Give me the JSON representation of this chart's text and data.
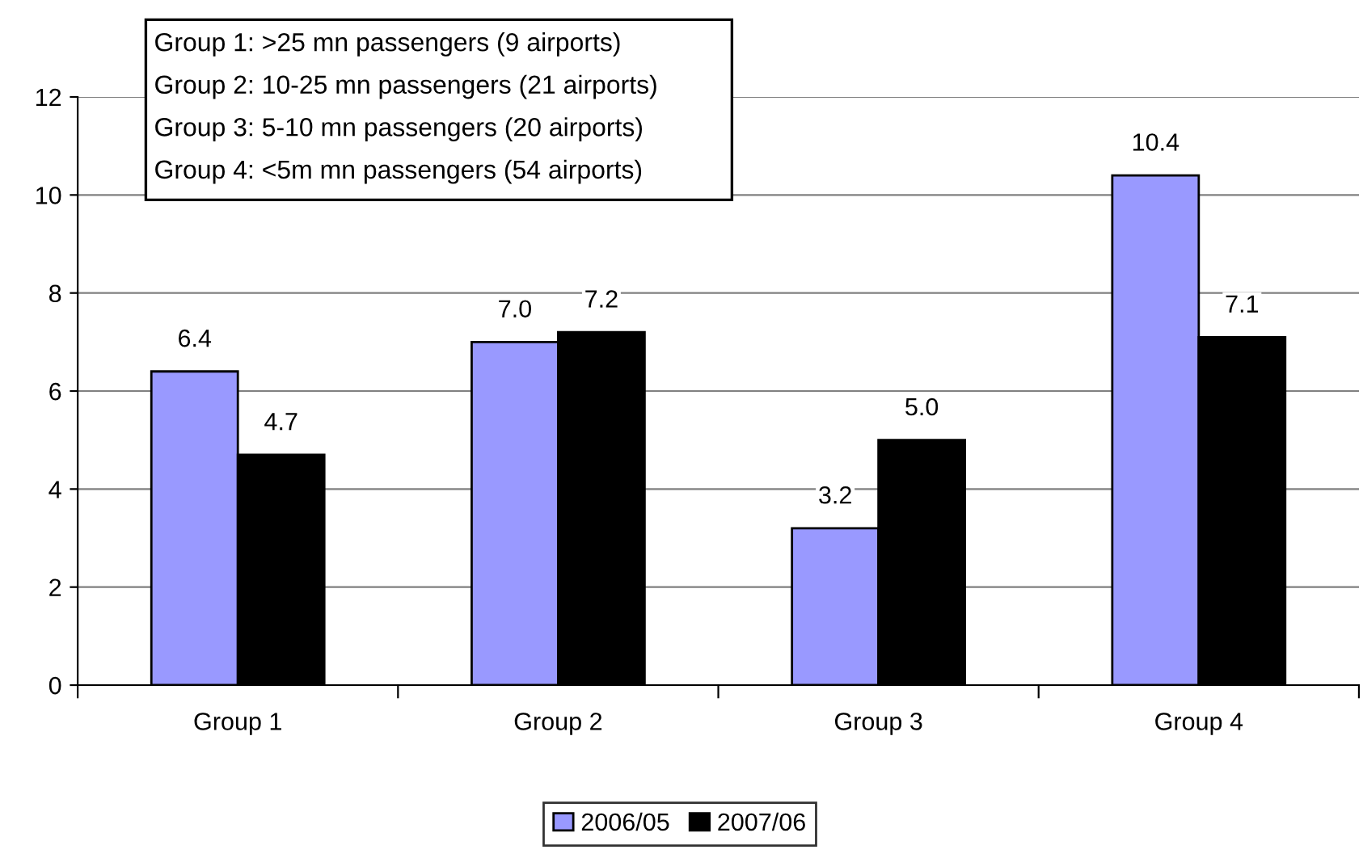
{
  "chart_data": {
    "type": "bar",
    "categories": [
      "Group 1",
      "Group 2",
      "Group 3",
      "Group 4"
    ],
    "series": [
      {
        "name": "2006/05",
        "color": "#9999ff",
        "values": [
          6.4,
          7.0,
          3.2,
          10.4
        ],
        "value_labels": [
          "6.4",
          "7.0",
          "3.2",
          "10.4"
        ]
      },
      {
        "name": "2007/06",
        "color": "#000000",
        "values": [
          4.7,
          7.2,
          5.0,
          7.1
        ],
        "value_labels": [
          "4.7",
          "7.2",
          "5.0",
          "7.1"
        ]
      }
    ],
    "ylim": [
      0,
      12
    ],
    "yticks": [
      0,
      2,
      4,
      6,
      8,
      10,
      12
    ],
    "grid": "y",
    "legend": "bottom",
    "annotations": [
      "Group 1: >25 mn passengers (9 airports)",
      "Group 2: 10-25 mn passengers (21 airports)",
      "Group 3: 5-10 mn passengers (20 airports)",
      "Group 4: <5m mn passengers (54 airports)"
    ]
  }
}
